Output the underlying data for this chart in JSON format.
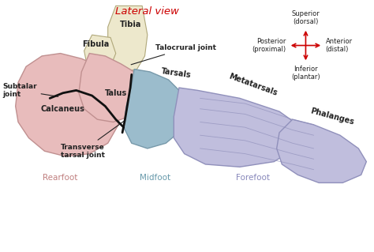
{
  "title": "Lateral view",
  "title_color": "#cc0000",
  "background_color": "#ffffff",
  "colors": {
    "tibia_fibula": "#ede8cc",
    "rearfoot": "#e8bcbc",
    "midfoot": "#9bbccc",
    "forefoot": "#c0bedd",
    "joint_line": "#111111",
    "label_color": "#222222",
    "arrow_color": "#cc0000",
    "rearfoot_label": "#c08080",
    "midfoot_label": "#6699aa",
    "forefoot_label": "#8888bb"
  },
  "labels": {
    "title": "Lateral view",
    "tibia": "Tibia",
    "fibula": "Fibula",
    "talocrural": "Talocrural joint",
    "tarsals": "Tarsals",
    "talus": "Talus",
    "subtalar": "Subtalar\njoint",
    "calcaneus": "Calcaneus",
    "transverse": "Transverse\ntarsal joint",
    "metatarsals": "Metatarsals",
    "phalanges": "Phalanges",
    "rearfoot": "Rearfoot",
    "midfoot": "Midfoot",
    "forefoot": "Forefoot",
    "superior": "Superior\n(dorsal)",
    "posterior": "Posterior\n(proximal)",
    "anterior": "Anterior\n(distal)",
    "inferior": "Inferior\n(plantar)"
  },
  "figsize": [
    4.74,
    3.19
  ],
  "dpi": 100
}
